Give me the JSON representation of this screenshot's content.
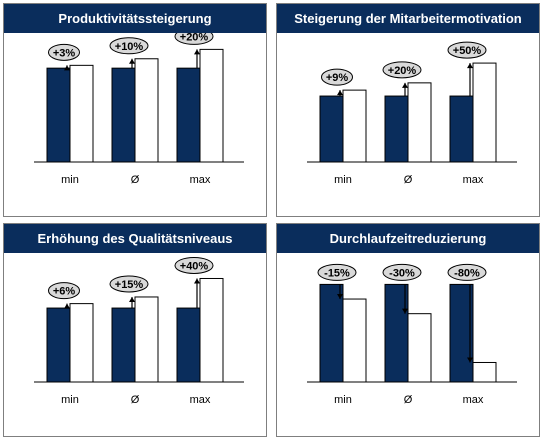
{
  "colors": {
    "header_bg": "#0a2d5c",
    "bar_before": "#0a2d5c",
    "bar_after": "#ffffff",
    "label_bubble": "#d9d9d9"
  },
  "chart_data": [
    {
      "type": "bar",
      "title": "Produktivitätssteigerung",
      "categories": [
        "min",
        "Ø",
        "max"
      ],
      "series": [
        {
          "values": [
            100,
            100,
            100
          ]
        },
        {
          "values": [
            103,
            110,
            120
          ]
        }
      ],
      "labels": [
        "+3%",
        "+10%",
        "+20%"
      ],
      "ylim": [
        0,
        130
      ],
      "grid": false
    },
    {
      "type": "bar",
      "title": "Steigerung der Mitarbeitermotivation",
      "categories": [
        "min",
        "Ø",
        "max"
      ],
      "series": [
        {
          "values": [
            100,
            100,
            100
          ]
        },
        {
          "values": [
            109,
            120,
            150
          ]
        }
      ],
      "labels": [
        "+9%",
        "+20%",
        "+50%"
      ],
      "ylim": [
        0,
        185
      ],
      "grid": false
    },
    {
      "type": "bar",
      "title": "Erhöhung des Qualitätsniveaus",
      "categories": [
        "min",
        "Ø",
        "max"
      ],
      "series": [
        {
          "values": [
            100,
            100,
            100
          ]
        },
        {
          "values": [
            106,
            115,
            140
          ]
        }
      ],
      "labels": [
        "+6%",
        "+15%",
        "+40%"
      ],
      "ylim": [
        0,
        165
      ],
      "grid": false
    },
    {
      "type": "bar",
      "title": "Durchlaufzeitreduzierung",
      "categories": [
        "min",
        "Ø",
        "max"
      ],
      "series": [
        {
          "values": [
            100,
            100,
            100
          ]
        },
        {
          "values": [
            85,
            70,
            20
          ]
        }
      ],
      "labels": [
        "-15%",
        "-30%",
        "-80%"
      ],
      "ylim": [
        0,
        125
      ],
      "grid": false
    }
  ]
}
